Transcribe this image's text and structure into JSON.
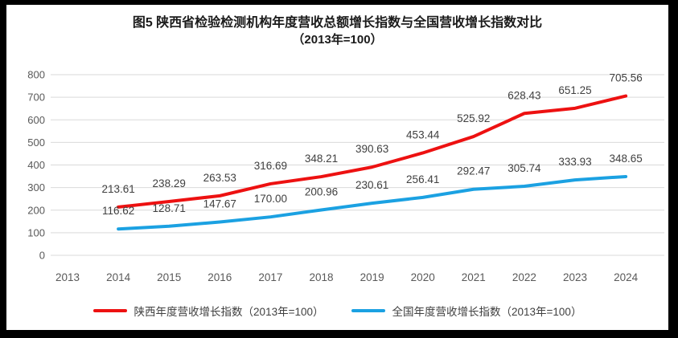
{
  "frame": {
    "border_color": "#000000",
    "background": "#ffffff"
  },
  "title": {
    "line1": "图5  陕西省检验检测机构年度营收总额增长指数与全国营收增长指数对比",
    "line2": "（2013年=100）"
  },
  "chart_data": {
    "type": "line",
    "categories": [
      "2013",
      "2014",
      "2015",
      "2016",
      "2017",
      "2018",
      "2019",
      "2020",
      "2021",
      "2022",
      "2023",
      "2024"
    ],
    "series": [
      {
        "name": "陕西年度营收增长指数（2013年=100）",
        "color": "#ed1111",
        "values": [
          null,
          213.61,
          238.29,
          263.53,
          316.69,
          348.21,
          390.63,
          453.44,
          525.92,
          628.43,
          651.25,
          705.56
        ]
      },
      {
        "name": "全国年度营收增长指数（2013年=100）",
        "color": "#1ba1e2",
        "values": [
          null,
          116.62,
          128.71,
          147.67,
          170.0,
          200.96,
          230.61,
          256.41,
          292.47,
          305.74,
          333.93,
          348.65
        ]
      }
    ],
    "ylim": [
      0,
      800
    ],
    "ytick_step": 100,
    "grid": true,
    "legend_position": "bottom",
    "data_labels": true,
    "data_label_decimals": 2
  },
  "style_colors": {
    "grid": "#d9d9d9",
    "axis_tick_text": "#595959",
    "data_label_text": "#404040",
    "title_text": "#1a1a1a"
  }
}
